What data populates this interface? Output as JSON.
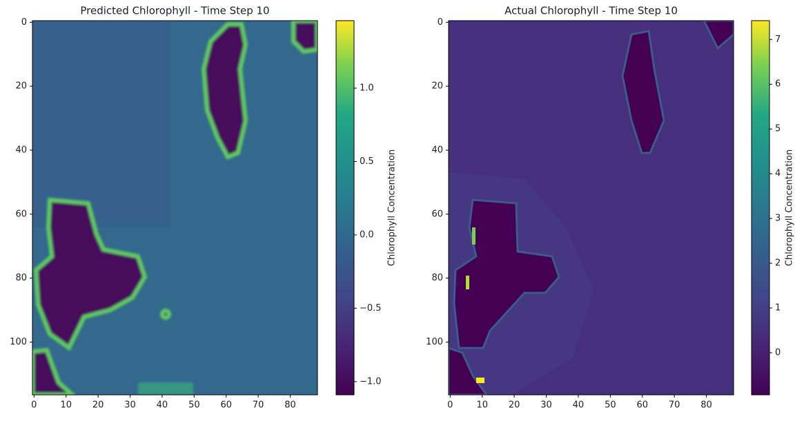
{
  "chart_data": [
    {
      "type": "heatmap",
      "title": "Predicted Chlorophyll - Time Step 10",
      "xlim": [
        -0.5,
        88.5
      ],
      "ylim": [
        116.5,
        -0.5
      ],
      "xticks": [
        0,
        10,
        20,
        30,
        40,
        50,
        60,
        70,
        80
      ],
      "yticks": [
        0,
        20,
        40,
        60,
        80,
        100
      ],
      "colorbar": {
        "label": "Chlorophyll Concentration",
        "clim": [
          -1.09,
          1.46
        ],
        "ticks": [
          {
            "value": -1.0,
            "label": "−1.0"
          },
          {
            "value": -0.5,
            "label": "−0.5"
          },
          {
            "value": 0.0,
            "label": "0.0"
          },
          {
            "value": 0.5,
            "label": "0.5"
          },
          {
            "value": 1.0,
            "label": "1.0"
          }
        ]
      }
    },
    {
      "type": "heatmap",
      "title": "Actual Chlorophyll - Time Step 10",
      "xlim": [
        -0.5,
        88.5
      ],
      "ylim": [
        116.5,
        -0.5
      ],
      "xticks": [
        0,
        10,
        20,
        30,
        40,
        50,
        60,
        70,
        80
      ],
      "yticks": [
        0,
        20,
        40,
        60,
        80,
        100
      ],
      "colorbar": {
        "label": "Chlorophyll Concentration",
        "clim": [
          -0.94,
          7.42
        ],
        "ticks": [
          0,
          1,
          2,
          3,
          4,
          5,
          6,
          7
        ]
      }
    }
  ]
}
